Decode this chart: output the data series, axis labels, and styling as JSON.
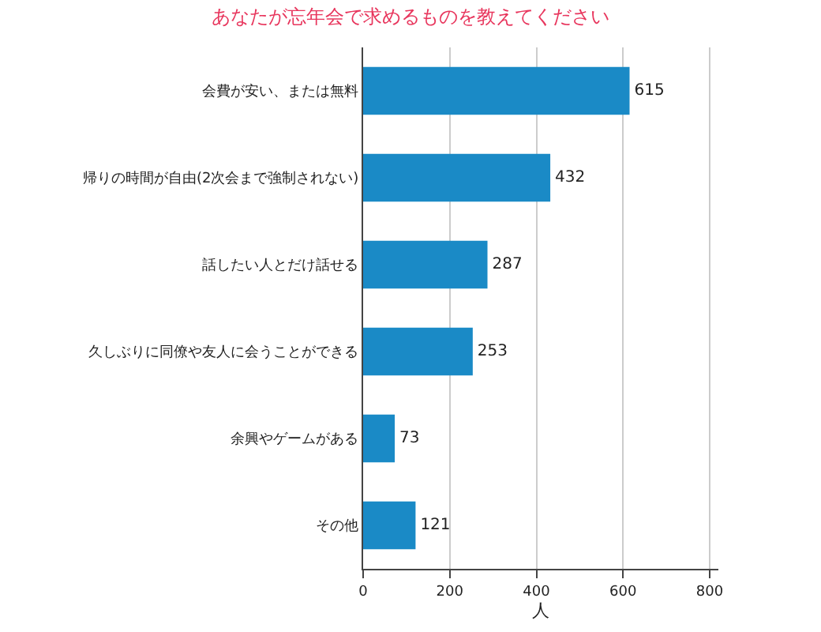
{
  "chart_data": {
    "type": "bar",
    "orientation": "horizontal",
    "title": "あなたが忘年会で求めるものを教えてください",
    "xlabel": "人",
    "categories": [
      "会費が安い、または無料",
      "帰りの時間が自由(2次会まで強制されない)",
      "話したい人とだけ話せる",
      "久しぶりに同僚や友人に会うことができる",
      "余興やゲームがある",
      "その他"
    ],
    "values": [
      615,
      432,
      287,
      253,
      73,
      121
    ],
    "color": "#1a8ac6",
    "xlim": [
      0,
      820
    ],
    "xticks": [
      0,
      200,
      400,
      600,
      800
    ],
    "grid": "x",
    "data_labels": true,
    "legend": false
  }
}
